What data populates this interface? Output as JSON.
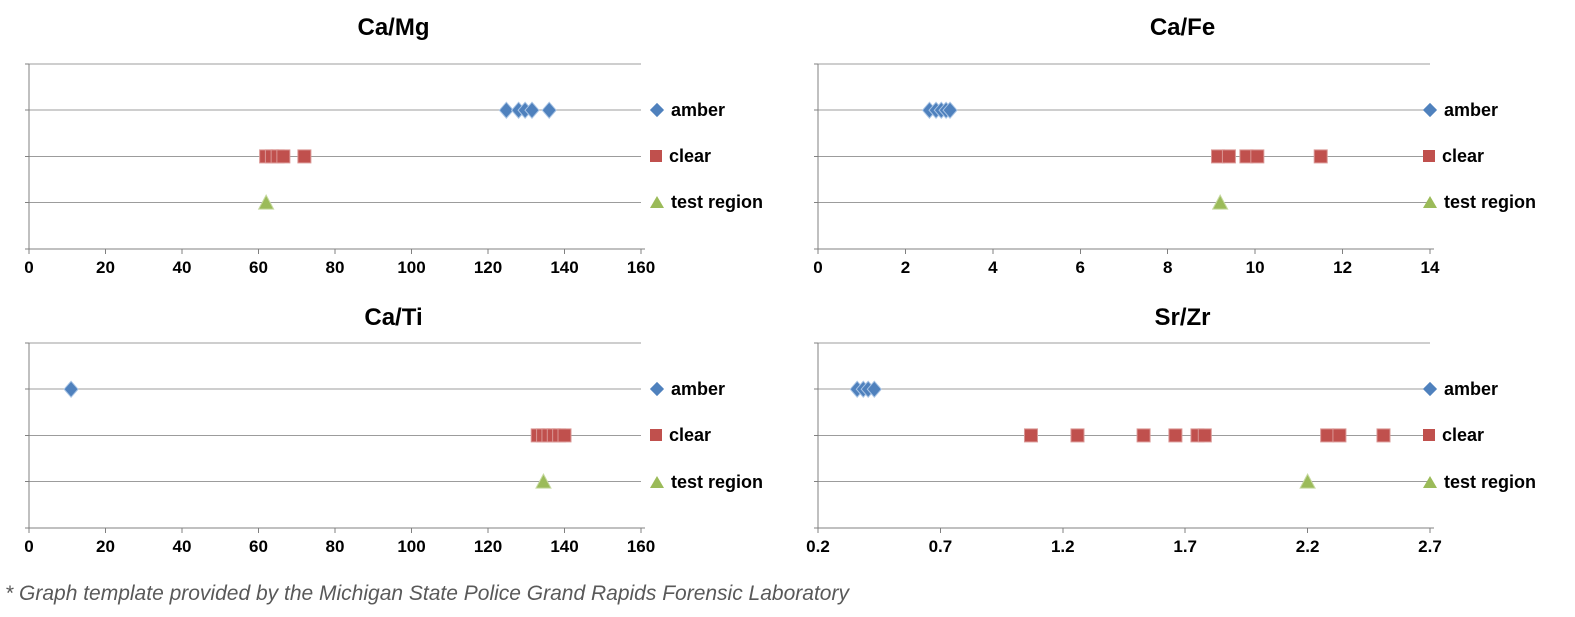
{
  "footer": {
    "note": "* Graph template provided by the Michigan State Police Grand Rapids Forensic Laboratory"
  },
  "palette": {
    "amber": "#4F81BD",
    "clear": "#C0504D",
    "test_region": "#9BBB59",
    "gridline": "#9c9c9c",
    "axis": "#808080"
  },
  "chart_data": [
    {
      "type": "scatter",
      "title": "Ca/Mg",
      "xlabel": "",
      "ylabel": "",
      "xlim": [
        0,
        160
      ],
      "xtick_labels": [
        "0",
        "20",
        "40",
        "60",
        "80",
        "100",
        "120",
        "140",
        "160"
      ],
      "grid": true,
      "legend_position": "right",
      "y_categories": [
        "amber",
        "clear",
        "test region"
      ],
      "series": [
        {
          "name": "amber",
          "marker": "diamond",
          "color": "#4F81BD",
          "edge": "#a8c4e5",
          "row": 1,
          "x": [
            124.8,
            128,
            129.7,
            131.5,
            136
          ]
        },
        {
          "name": "clear",
          "marker": "square",
          "color": "#C0504D",
          "edge": "#da9694",
          "row": 2,
          "x": [
            62,
            63.5,
            65,
            66.5,
            72
          ]
        },
        {
          "name": "test region",
          "marker": "triangle",
          "color": "#9BBB59",
          "edge": "#c6d9a0",
          "row": 3,
          "x": [
            62
          ]
        }
      ]
    },
    {
      "type": "scatter",
      "title": "Ca/Fe",
      "xlabel": "",
      "ylabel": "",
      "xlim": [
        0,
        14
      ],
      "xtick_labels": [
        "0",
        "2",
        "4",
        "6",
        "8",
        "10",
        "12",
        "14"
      ],
      "grid": true,
      "legend_position": "right",
      "y_categories": [
        "amber",
        "clear",
        "test region"
      ],
      "series": [
        {
          "name": "amber",
          "marker": "diamond",
          "color": "#4F81BD",
          "edge": "#a8c4e5",
          "row": 1,
          "x": [
            2.55,
            2.7,
            2.82,
            2.93,
            3.02
          ]
        },
        {
          "name": "clear",
          "marker": "square",
          "color": "#C0504D",
          "edge": "#da9694",
          "row": 2,
          "x": [
            9.15,
            9.4,
            9.8,
            10.05,
            11.5
          ]
        },
        {
          "name": "test region",
          "marker": "triangle",
          "color": "#9BBB59",
          "edge": "#c6d9a0",
          "row": 3,
          "x": [
            9.2
          ]
        }
      ]
    },
    {
      "type": "scatter",
      "title": "Ca/Ti",
      "xlabel": "",
      "ylabel": "",
      "xlim": [
        0,
        160
      ],
      "xtick_labels": [
        "0",
        "20",
        "40",
        "60",
        "80",
        "100",
        "120",
        "140",
        "160"
      ],
      "grid": true,
      "legend_position": "right",
      "y_categories": [
        "amber",
        "clear",
        "test region"
      ],
      "series": [
        {
          "name": "amber",
          "marker": "diamond",
          "color": "#4F81BD",
          "edge": "#a8c4e5",
          "row": 1,
          "x": [
            11
          ]
        },
        {
          "name": "clear",
          "marker": "square",
          "color": "#C0504D",
          "edge": "#da9694",
          "row": 2,
          "x": [
            133,
            134.4,
            135.8,
            137.2,
            138.6,
            140
          ]
        },
        {
          "name": "test region",
          "marker": "triangle",
          "color": "#9BBB59",
          "edge": "#c6d9a0",
          "row": 3,
          "x": [
            134.5
          ]
        }
      ]
    },
    {
      "type": "scatter",
      "title": "Sr/Zr",
      "xlabel": "",
      "ylabel": "",
      "xlim": [
        0.2,
        2.7
      ],
      "xtick_labels": [
        "0.2",
        "0.7",
        "1.2",
        "1.7",
        "2.2",
        "2.7"
      ],
      "grid": true,
      "legend_position": "right",
      "y_categories": [
        "amber",
        "clear",
        "test region"
      ],
      "series": [
        {
          "name": "amber",
          "marker": "diamond",
          "color": "#4F81BD",
          "edge": "#a8c4e5",
          "row": 1,
          "x": [
            0.36,
            0.385,
            0.405,
            0.43
          ]
        },
        {
          "name": "clear",
          "marker": "square",
          "color": "#C0504D",
          "edge": "#da9694",
          "row": 2,
          "x": [
            1.07,
            1.26,
            1.53,
            1.66,
            1.75,
            1.78,
            2.28,
            2.33,
            2.51
          ]
        },
        {
          "name": "test region",
          "marker": "triangle",
          "color": "#9BBB59",
          "edge": "#c6d9a0",
          "row": 3,
          "x": [
            2.2
          ]
        }
      ]
    }
  ]
}
